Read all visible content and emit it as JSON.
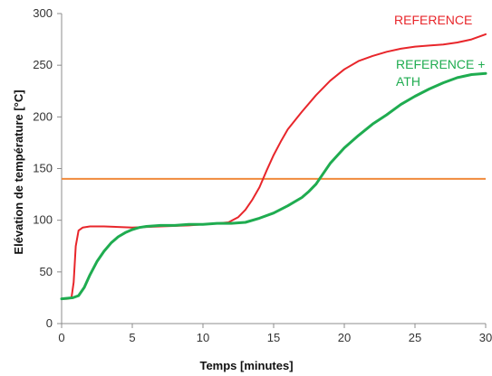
{
  "chart_data": {
    "type": "line",
    "title": "",
    "xlabel": "Temps [minutes]",
    "ylabel": "Elévation de température [°C]",
    "xlim": [
      0,
      30
    ],
    "ylim": [
      0,
      300
    ],
    "xticks": [
      0,
      5,
      10,
      15,
      20,
      25,
      30
    ],
    "yticks": [
      0,
      50,
      100,
      150,
      200,
      250,
      300
    ],
    "grid": false,
    "series": [
      {
        "name": "REFERENCE",
        "label_lines": [
          "REFERENCE"
        ],
        "color": "#e8262b",
        "x": [
          0,
          0.4,
          0.7,
          0.85,
          1.0,
          1.2,
          1.5,
          2,
          3,
          5,
          7,
          9,
          10,
          11,
          11.8,
          12.5,
          13,
          13.5,
          14,
          14.5,
          15,
          15.5,
          16,
          17,
          18,
          19,
          20,
          21,
          22,
          23,
          24,
          25,
          26,
          27,
          28,
          29,
          30
        ],
        "y": [
          24,
          24,
          25,
          40,
          75,
          90,
          93,
          94,
          94,
          93,
          94,
          95,
          96,
          97,
          98,
          103,
          110,
          120,
          132,
          148,
          163,
          176,
          188,
          205,
          221,
          235,
          246,
          254,
          259,
          263,
          266,
          268,
          269,
          270,
          272,
          275,
          280
        ]
      },
      {
        "name": "REFERENCE + ATH",
        "label_lines": [
          "REFERENCE +",
          "ATH"
        ],
        "color": "#1fac50",
        "x": [
          0,
          0.8,
          1.2,
          1.6,
          2,
          2.5,
          3,
          3.5,
          4,
          4.5,
          5,
          5.5,
          6,
          7,
          8,
          9,
          10,
          11,
          12,
          13,
          14,
          15,
          16,
          17,
          17.5,
          18,
          18.5,
          19,
          20,
          21,
          22,
          23,
          24,
          25,
          26,
          27,
          28,
          29,
          30
        ],
        "y": [
          24,
          25,
          27,
          35,
          47,
          60,
          70,
          78,
          84,
          88,
          91,
          93,
          94,
          95,
          95,
          96,
          96,
          97,
          97,
          98,
          102,
          107,
          114,
          122,
          128,
          135,
          145,
          155,
          170,
          182,
          193,
          202,
          212,
          220,
          227,
          233,
          238,
          241,
          242
        ]
      }
    ],
    "reference_lines": [
      {
        "y": 140,
        "color": "#f08a3c"
      }
    ]
  }
}
